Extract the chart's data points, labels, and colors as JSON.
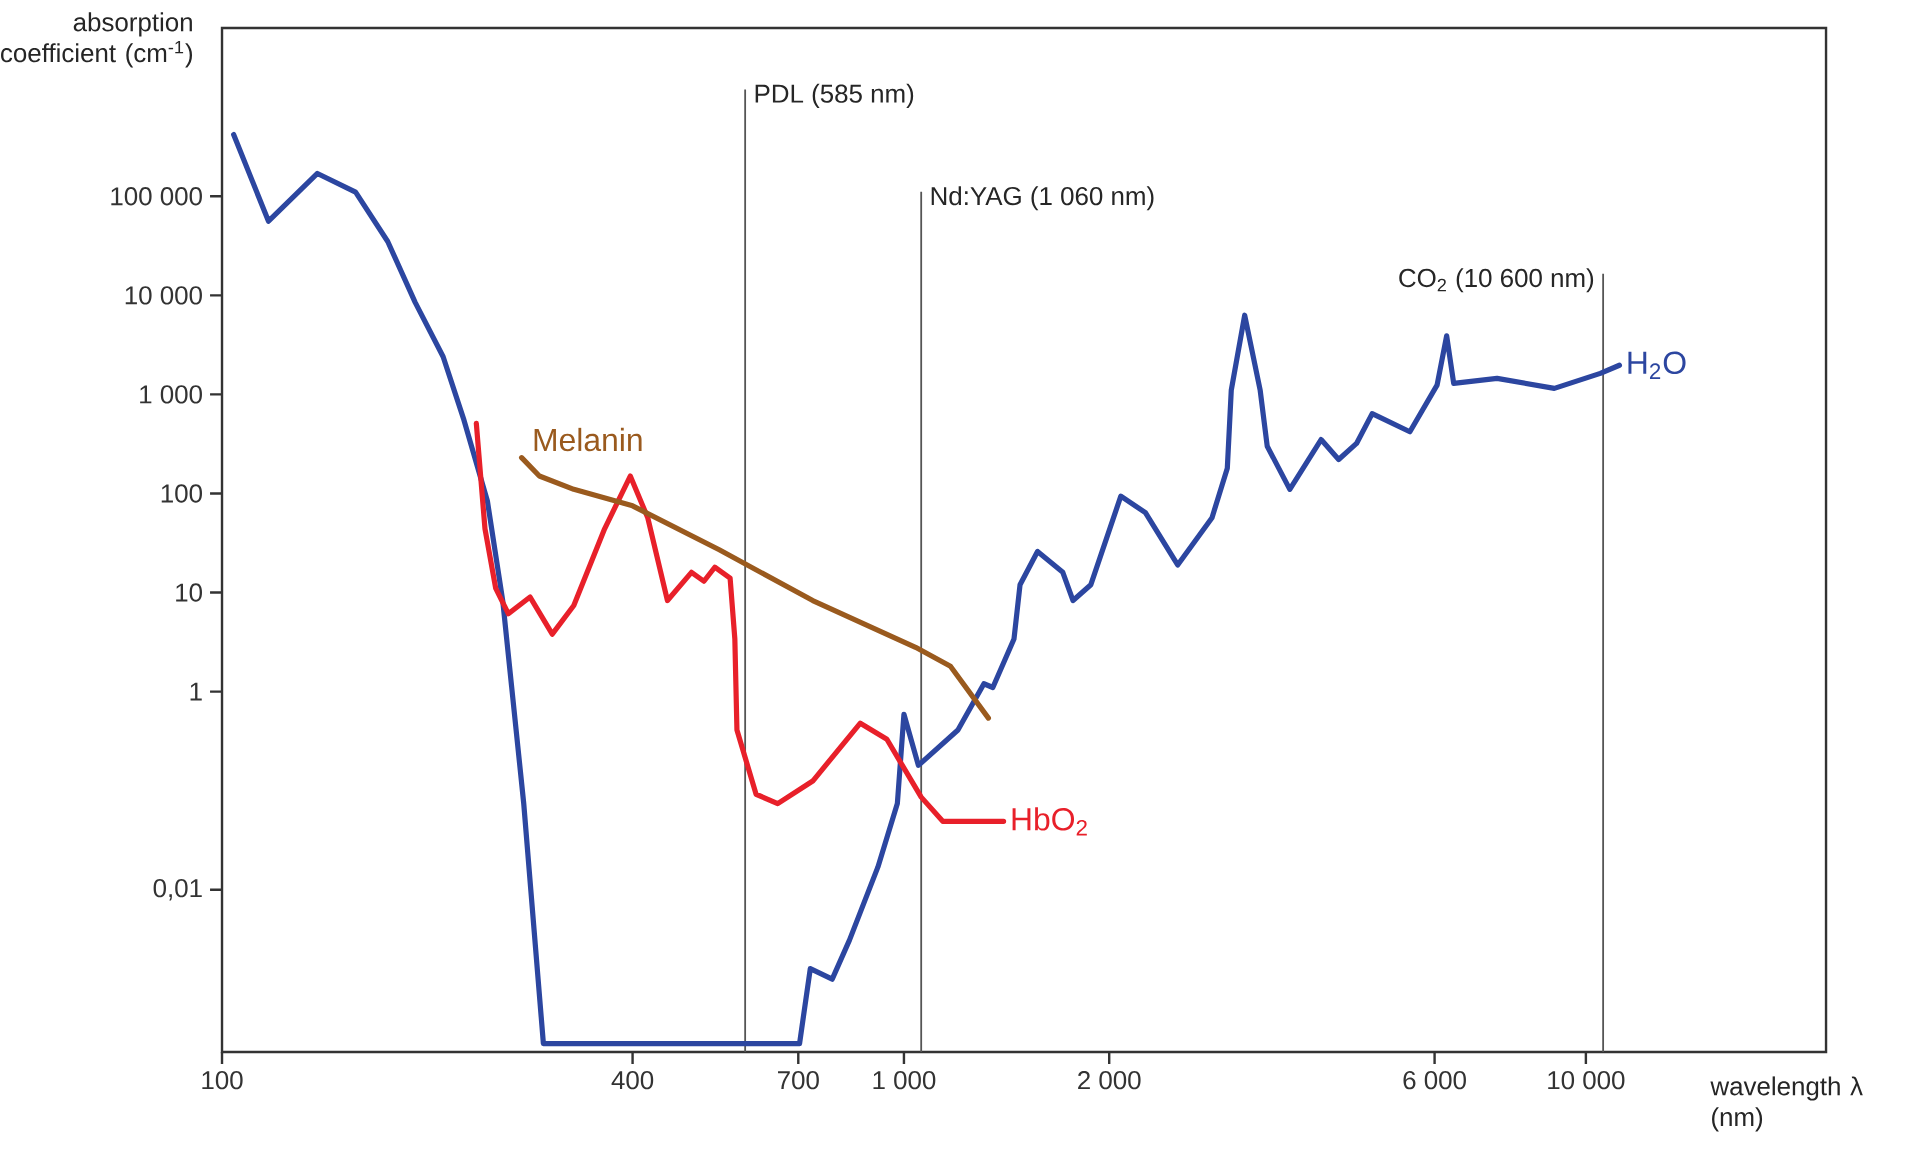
{
  "chart_data": {
    "type": "line",
    "xlabel": "wavelength λ (nm)",
    "ylabel": "absorption coefficient (cm$^{-1}$)",
    "log": "xy",
    "xlim": [
      100,
      22500
    ],
    "ylim": [
      0.00023,
      5000000
    ],
    "xticks": [
      100,
      400,
      700,
      {
        "value": 1000,
        "label": "1 000"
      },
      {
        "value": 2000,
        "label": "2 000"
      },
      {
        "value": 6000,
        "label": "6 000"
      },
      {
        "value": 10000,
        "label": "10 000"
      }
    ],
    "yticks": [
      {
        "value": 100000,
        "label": "100 000"
      },
      {
        "value": 10000,
        "label": "10 000"
      },
      {
        "value": 1000,
        "label": "1 000"
      },
      100,
      10,
      1,
      {
        "value": 0.01,
        "label": "0,01"
      }
    ],
    "series": [
      {
        "name": "H$_{2}$O",
        "color": "#2c46a0",
        "x": [
          104,
          117,
          138,
          157,
          175,
          192,
          211,
          226,
          245,
          258,
          277,
          296,
          703,
          729,
          785,
          832,
          916,
          978,
          1000,
          1050,
          1200,
          1310,
          1350,
          1450,
          1480,
          1570,
          1710,
          1770,
          1880,
          2080,
          2260,
          2520,
          2830,
          2980,
          3020,
          3160,
          3330,
          3410,
          3680,
          4090,
          4340,
          4610,
          4860,
          5520,
          6050,
          6250,
          6400,
          7410,
          8990,
          10500,
          11200
        ],
        "values": [
          420000,
          56000,
          170000,
          110000,
          35000,
          8500,
          2400,
          570,
          84,
          8.3,
          0.074,
          0.00028,
          0.00028,
          0.0016,
          0.00125,
          0.0031,
          0.017,
          0.074,
          0.59,
          0.18,
          0.41,
          1.2,
          1.1,
          3.4,
          12,
          26,
          16,
          8.3,
          12,
          94,
          64,
          19,
          57,
          180,
          1100,
          6300,
          1100,
          300,
          110,
          350,
          220,
          320,
          640,
          420,
          1240,
          3900,
          1290,
          1450,
          1150,
          1630,
          1970
        ]
      },
      {
        "name": "HbO$_{2}$",
        "color": "#e8202a",
        "x": [
          236,
          243,
          252,
          263,
          283,
          305,
          328,
          364,
          397,
          421,
          450,
          488,
          509,
          528,
          556,
          565,
          569,
          607,
          653,
          735,
          863,
          944,
          1060,
          1140,
          1400
        ],
        "values": [
          510,
          44,
          11,
          6.1,
          9.0,
          3.8,
          7.4,
          44,
          150,
          57,
          8.3,
          16,
          13,
          18,
          14,
          3.4,
          0.41,
          0.092,
          0.074,
          0.125,
          0.48,
          0.33,
          0.086,
          0.049,
          0.049
        ]
      },
      {
        "name": "Melanin",
        "color": "#9a5a1e",
        "x": [
          275,
          292,
          328,
          400,
          536,
          735,
          1040,
          1170,
          1330
        ],
        "values": [
          230,
          150,
          110,
          75,
          27,
          8.3,
          2.8,
          1.8,
          0.54
        ]
      }
    ],
    "ref_lines": [
      {
        "axis": "x",
        "value": 585,
        "label": "PDL (585 nm)",
        "color": "#555555"
      },
      {
        "axis": "x",
        "value": 1060,
        "label": "Nd:YAG (1 060 nm)",
        "color": "#555555"
      },
      {
        "axis": "x",
        "value": 10600,
        "label": "CO$_{2}$ (10 600 nm)",
        "color": "#555555"
      }
    ]
  }
}
